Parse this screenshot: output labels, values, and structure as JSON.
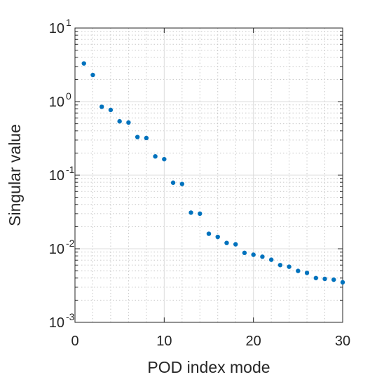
{
  "chart_data": {
    "type": "scatter",
    "title": "",
    "xlabel": "POD index mode",
    "ylabel": "Singular value",
    "xlim": [
      0,
      30
    ],
    "ylim": [
      0.001,
      10
    ],
    "yscale": "log",
    "grid": true,
    "minor_grid": true,
    "x_ticks": [
      "0",
      "10",
      "20",
      "30"
    ],
    "y_ticks": [
      {
        "base": "10",
        "exp": "1"
      },
      {
        "base": "10",
        "exp": "0"
      },
      {
        "base": "10",
        "exp": "-1"
      },
      {
        "base": "10",
        "exp": "-2"
      },
      {
        "base": "10",
        "exp": "-3"
      }
    ],
    "marker_color": "#0072BD",
    "series": [
      {
        "x": [
          1,
          2,
          3,
          4,
          5,
          6,
          7,
          8,
          9,
          10,
          11,
          12,
          13,
          14,
          15,
          16,
          17,
          18,
          19,
          20,
          21,
          22,
          23,
          24,
          25,
          26,
          27,
          28,
          29,
          30
        ],
        "y": [
          3.3,
          2.3,
          0.85,
          0.77,
          0.54,
          0.52,
          0.33,
          0.32,
          0.18,
          0.165,
          0.079,
          0.076,
          0.031,
          0.03,
          0.016,
          0.0145,
          0.012,
          0.0115,
          0.0088,
          0.0083,
          0.0078,
          0.0071,
          0.006,
          0.0057,
          0.005,
          0.0047,
          0.004,
          0.0039,
          0.0038,
          0.0035
        ]
      }
    ]
  }
}
